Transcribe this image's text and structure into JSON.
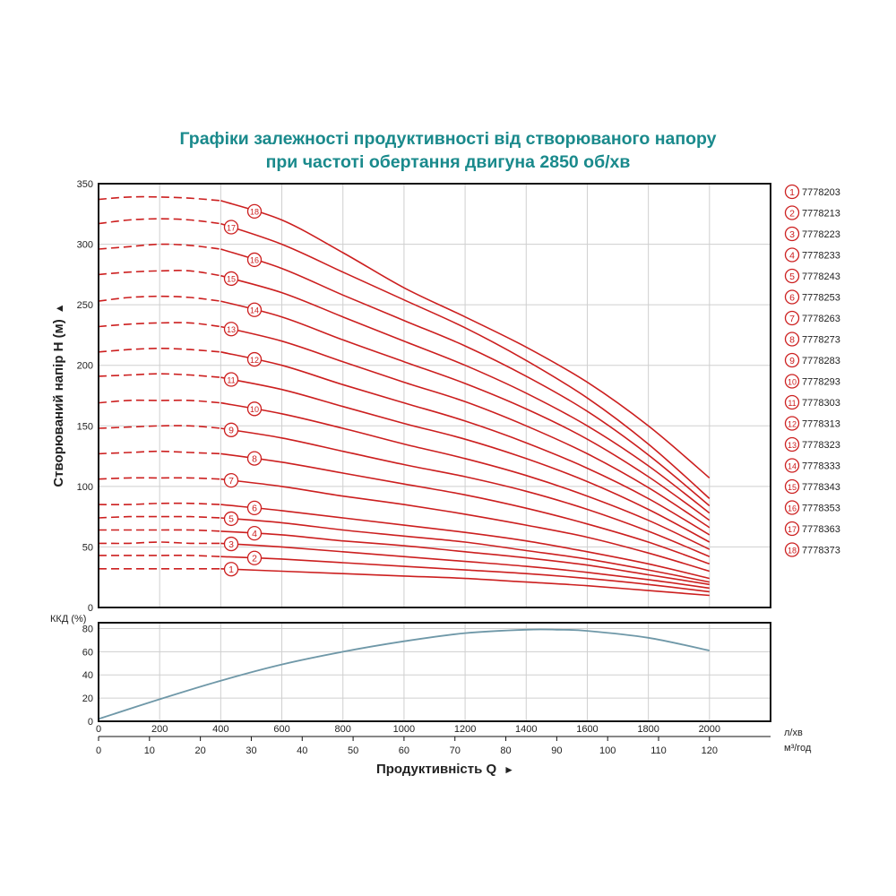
{
  "title_line1": "Графіки залежності продуктивності від створюваного напору",
  "title_line2": "при частоті обертання двигуна 2850 об/хв",
  "colors": {
    "title": "#1a8a8c",
    "curve": "#cc1f1f",
    "efficiency": "#6f98a8",
    "grid": "#cfcfcf"
  },
  "chart_data": [
    {
      "type": "line",
      "ylabel": "Створюваний напір Н (м)",
      "ylim": [
        0,
        350
      ],
      "yticks": [
        0,
        50,
        100,
        150,
        200,
        250,
        300,
        350
      ],
      "xlim": [
        0,
        2200
      ],
      "xlabel_unit_lmin": "л/хв",
      "xlabel_unit_m3h": "м³/год",
      "xticks_lmin": [
        0,
        200,
        400,
        600,
        800,
        1000,
        1200,
        1400,
        1600,
        1800,
        2000
      ],
      "xticks_m3h": [
        0,
        10,
        20,
        30,
        40,
        50,
        60,
        70,
        80,
        90,
        100,
        110,
        120
      ],
      "dashed_until": 400,
      "curve_x": [
        0,
        100,
        200,
        300,
        400,
        600,
        800,
        1000,
        1200,
        1400,
        1600,
        1800,
        2000
      ],
      "series": [
        {
          "label": "1",
          "model": "7778203",
          "values": [
            32,
            32,
            32,
            32,
            32,
            30,
            28,
            26,
            24,
            21,
            18,
            14,
            10
          ]
        },
        {
          "label": "2",
          "model": "7778213",
          "values": [
            43,
            43,
            43,
            43,
            42,
            40,
            37,
            34,
            31,
            28,
            24,
            19,
            13
          ]
        },
        {
          "label": "3",
          "model": "7778223",
          "values": [
            53,
            53,
            54,
            53,
            53,
            50,
            46,
            42,
            38,
            34,
            29,
            23,
            16
          ]
        },
        {
          "label": "4",
          "model": "7778233",
          "values": [
            64,
            64,
            64,
            64,
            63,
            60,
            55,
            51,
            46,
            41,
            35,
            27,
            19
          ]
        },
        {
          "label": "5",
          "model": "7778243",
          "values": [
            74,
            75,
            75,
            75,
            74,
            70,
            64,
            59,
            54,
            47,
            40,
            31,
            21
          ]
        },
        {
          "label": "6",
          "model": "7778253",
          "values": [
            85,
            85,
            86,
            86,
            85,
            80,
            74,
            68,
            62,
            55,
            46,
            36,
            24
          ]
        },
        {
          "label": "7",
          "model": "7778263",
          "values": [
            106,
            107,
            107,
            107,
            106,
            100,
            92,
            85,
            77,
            68,
            58,
            45,
            30
          ]
        },
        {
          "label": "8",
          "model": "7778273",
          "values": [
            127,
            128,
            129,
            128,
            127,
            120,
            111,
            102,
            93,
            82,
            69,
            54,
            36
          ]
        },
        {
          "label": "9",
          "model": "7778283",
          "values": [
            148,
            149,
            150,
            150,
            148,
            140,
            129,
            118,
            108,
            96,
            81,
            63,
            42
          ]
        },
        {
          "label": "10",
          "model": "7778293",
          "values": [
            169,
            171,
            171,
            171,
            169,
            160,
            148,
            135,
            123,
            109,
            92,
            72,
            48
          ]
        },
        {
          "label": "11",
          "model": "7778303",
          "values": [
            191,
            192,
            193,
            192,
            190,
            180,
            166,
            152,
            139,
            123,
            104,
            81,
            54
          ]
        },
        {
          "label": "12",
          "model": "7778313",
          "values": [
            211,
            213,
            214,
            213,
            211,
            200,
            184,
            169,
            154,
            136,
            115,
            90,
            60
          ]
        },
        {
          "label": "13",
          "model": "7778323",
          "values": [
            232,
            234,
            235,
            235,
            232,
            220,
            203,
            186,
            170,
            150,
            127,
            99,
            66
          ]
        },
        {
          "label": "14",
          "model": "7778333",
          "values": [
            253,
            256,
            257,
            256,
            253,
            240,
            221,
            203,
            185,
            164,
            139,
            108,
            72
          ]
        },
        {
          "label": "15",
          "model": "7778343",
          "values": [
            275,
            277,
            278,
            278,
            274,
            260,
            240,
            220,
            200,
            177,
            150,
            117,
            78
          ]
        },
        {
          "label": "16",
          "model": "7778353",
          "values": [
            296,
            298,
            300,
            299,
            296,
            280,
            258,
            237,
            216,
            191,
            162,
            126,
            84
          ]
        },
        {
          "label": "17",
          "model": "7778363",
          "values": [
            317,
            320,
            321,
            320,
            317,
            300,
            277,
            254,
            231,
            204,
            173,
            135,
            90
          ]
        },
        {
          "label": "18",
          "model": "7778373",
          "values": [
            337,
            339,
            339,
            338,
            336,
            320,
            293,
            264,
            240,
            215,
            186,
            150,
            107
          ]
        }
      ]
    },
    {
      "type": "line",
      "ylabel": "ККД (%)",
      "ylim": [
        0,
        85
      ],
      "yticks": [
        0,
        20,
        40,
        60,
        80
      ],
      "x": [
        0,
        200,
        400,
        600,
        800,
        1000,
        1200,
        1400,
        1500,
        1600,
        1800,
        2000
      ],
      "values": [
        2,
        19,
        35,
        49,
        60,
        69,
        76,
        79,
        79,
        78,
        72,
        61
      ]
    }
  ],
  "bottom_axis_label": "Продуктивність  Q"
}
